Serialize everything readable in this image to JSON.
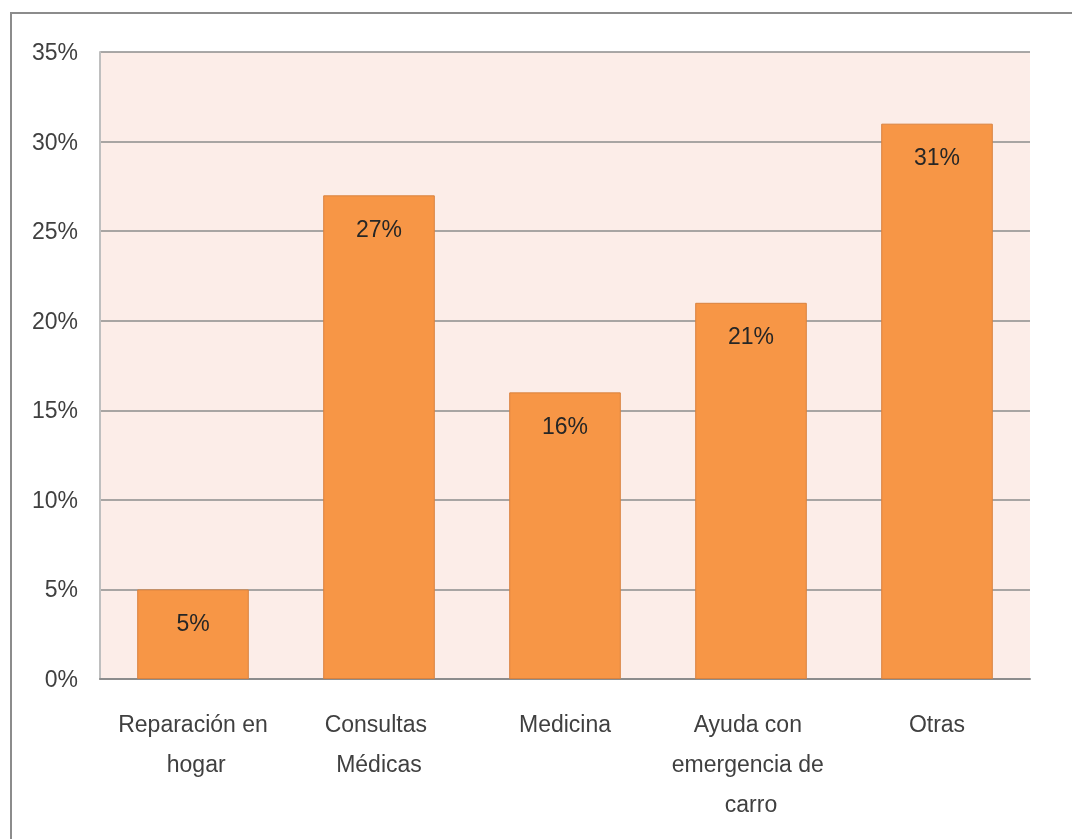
{
  "chart_data": {
    "type": "bar",
    "categories": [
      "Reparación en hogar",
      "Consultas Médicas",
      "Medicina",
      "Ayuda con emergencia de carro",
      "Otras"
    ],
    "values": [
      5,
      27,
      16,
      21,
      31
    ],
    "color": "#f79646",
    "value_labels": [
      "5%",
      "27%",
      "16%",
      "21%",
      "31%"
    ],
    "ylim": [
      0,
      35
    ],
    "yticks": [
      {
        "value": 0,
        "label": "0%"
      },
      {
        "value": 5,
        "label": "5%"
      },
      {
        "value": 10,
        "label": "10%"
      },
      {
        "value": 15,
        "label": "15%"
      },
      {
        "value": 20,
        "label": "20%"
      },
      {
        "value": 25,
        "label": "25%"
      },
      {
        "value": 30,
        "label": "30%"
      },
      {
        "value": 35,
        "label": "35%"
      }
    ],
    "grid": "y"
  }
}
